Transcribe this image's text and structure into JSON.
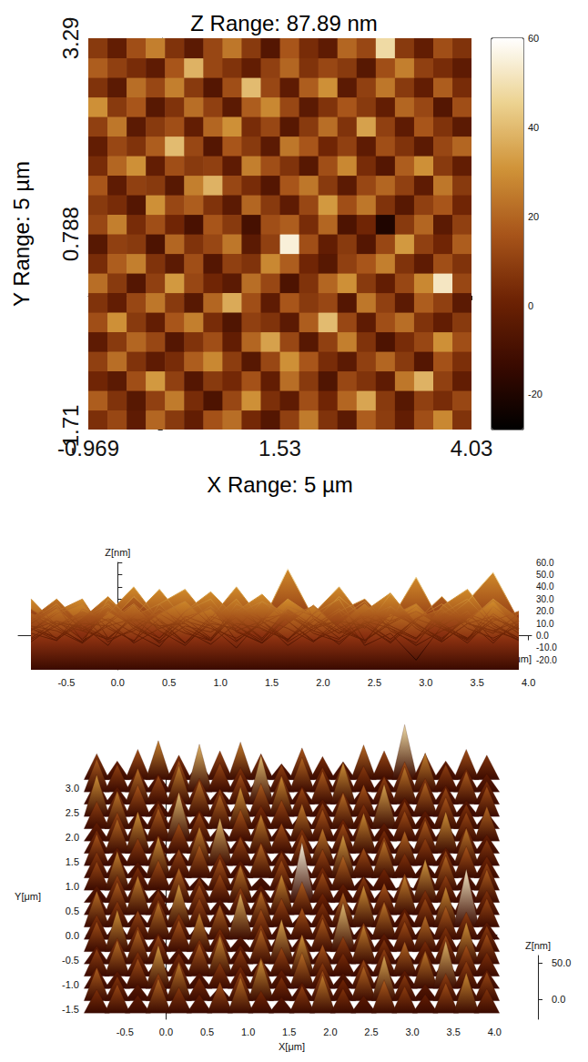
{
  "chart_data": [
    {
      "type": "heatmap",
      "title": "Z Range: 87.89 nm",
      "x_label": "X Range: 5 µm",
      "y_label": "Y Range: 5 µm",
      "xlim": [
        -0.969,
        4.03
      ],
      "ylim": [
        -1.71,
        3.29
      ],
      "xticks": [
        -0.969,
        1.53,
        4.03
      ],
      "yticks": [
        -1.71,
        0.788,
        3.29
      ],
      "colorbar_range": [
        -27.89,
        60
      ],
      "colorbar_ticks": [
        -20,
        0,
        20,
        40,
        60
      ],
      "x": [
        -0.844,
        -0.594,
        -0.344,
        -0.094,
        0.156,
        0.406,
        0.656,
        0.906,
        1.156,
        1.406,
        1.656,
        1.906,
        2.156,
        2.406,
        2.656,
        2.906,
        3.156,
        3.406,
        3.656,
        3.906
      ],
      "y": [
        -1.585,
        -1.335,
        -1.085,
        -0.835,
        -0.585,
        -0.335,
        -0.085,
        0.165,
        0.415,
        0.665,
        0.915,
        1.165,
        1.415,
        1.665,
        1.915,
        2.165,
        2.415,
        2.665,
        2.915,
        3.165
      ],
      "z": [
        [
          5,
          12,
          -3,
          20,
          8,
          -2,
          15,
          22,
          3,
          -6,
          10,
          25,
          6,
          -4,
          18,
          9,
          -2,
          14,
          28,
          6
        ],
        [
          18,
          6,
          -5,
          10,
          25,
          4,
          -8,
          12,
          30,
          5,
          -3,
          14,
          2,
          20,
          35,
          8,
          -5,
          10,
          4,
          12
        ],
        [
          2,
          -4,
          14,
          32,
          10,
          -6,
          8,
          3,
          15,
          -2,
          22,
          8,
          -7,
          12,
          6,
          -3,
          24,
          38,
          10,
          -2
        ],
        [
          10,
          22,
          6,
          -3,
          4,
          18,
          28,
          9,
          -5,
          12,
          30,
          16,
          4,
          -4,
          10,
          20,
          8,
          -6,
          15,
          5
        ],
        [
          -3,
          8,
          20,
          12,
          -6,
          6,
          14,
          -2,
          20,
          34,
          12,
          -5,
          10,
          26,
          6,
          -8,
          4,
          12,
          30,
          14
        ],
        [
          14,
          30,
          8,
          -2,
          16,
          26,
          4,
          -7,
          10,
          6,
          -4,
          18,
          40,
          12,
          -3,
          14,
          22,
          6,
          -2,
          8
        ],
        [
          6,
          -2,
          12,
          24,
          8,
          -5,
          20,
          36,
          14,
          -3,
          16,
          8,
          12,
          -6,
          24,
          10,
          -4,
          18,
          10,
          -4
        ],
        [
          22,
          8,
          -6,
          10,
          32,
          12,
          2,
          -4,
          22,
          12,
          -8,
          6,
          20,
          30,
          8,
          -2,
          12,
          28,
          52,
          12
        ],
        [
          4,
          18,
          26,
          6,
          -4,
          14,
          -6,
          10,
          6,
          28,
          18,
          2,
          -5,
          10,
          16,
          26,
          6,
          -3,
          14,
          6
        ],
        [
          -5,
          10,
          8,
          -8,
          20,
          6,
          12,
          24,
          -4,
          10,
          55,
          14,
          -2,
          8,
          -6,
          12,
          32,
          10,
          2,
          18
        ],
        [
          12,
          26,
          4,
          14,
          2,
          -9,
          16,
          8,
          -10,
          14,
          18,
          4,
          20,
          -8,
          2,
          -20,
          8,
          20,
          -4,
          10
        ],
        [
          8,
          4,
          -6,
          30,
          12,
          18,
          6,
          -4,
          20,
          8,
          -3,
          12,
          32,
          14,
          24,
          6,
          -5,
          10,
          16,
          2
        ],
        [
          16,
          -3,
          10,
          8,
          -5,
          26,
          38,
          12,
          4,
          -6,
          16,
          24,
          8,
          -4,
          12,
          20,
          10,
          -3,
          24,
          8
        ],
        [
          4,
          20,
          30,
          -2,
          14,
          8,
          10,
          -3,
          26,
          14,
          6,
          -5,
          14,
          28,
          4,
          -6,
          18,
          30,
          8,
          -2
        ],
        [
          -2,
          12,
          6,
          18,
          40,
          12,
          -6,
          16,
          8,
          -4,
          24,
          16,
          2,
          10,
          -3,
          14,
          6,
          -4,
          12,
          20
        ],
        [
          10,
          24,
          -4,
          8,
          14,
          -2,
          20,
          30,
          4,
          12,
          -5,
          8,
          22,
          6,
          34,
          10,
          -3,
          16,
          6,
          -4
        ],
        [
          30,
          8,
          16,
          -5,
          6,
          22,
          10,
          -4,
          18,
          28,
          12,
          -4,
          6,
          16,
          8,
          -2,
          20,
          12,
          -6,
          14
        ],
        [
          6,
          -4,
          22,
          12,
          26,
          8,
          -6,
          14,
          40,
          12,
          -3,
          18,
          30,
          -4,
          10,
          24,
          8,
          -2,
          18,
          4
        ],
        [
          18,
          10,
          4,
          -3,
          16,
          38,
          12,
          6,
          -2,
          10,
          20,
          6,
          12,
          8,
          -5,
          14,
          26,
          10,
          4,
          -3
        ],
        [
          8,
          -2,
          14,
          26,
          6,
          -4,
          12,
          24,
          8,
          -6,
          16,
          4,
          -3,
          20,
          12,
          48,
          8,
          -2,
          14,
          6
        ]
      ]
    },
    {
      "type": "side_view",
      "x_label": "X[μm]",
      "z_label": "Z[nm]",
      "xlim": [
        -0.969,
        4.03
      ],
      "xticks": [
        {
          "value": -0.5,
          "label": "-0.5"
        },
        {
          "value": 0,
          "label": "0.0"
        },
        {
          "value": 0.5,
          "label": "0.5"
        },
        {
          "value": 1,
          "label": "1.0"
        },
        {
          "value": 1.5,
          "label": "1.5"
        },
        {
          "value": 2,
          "label": "2.0"
        },
        {
          "value": 2.5,
          "label": "2.5"
        },
        {
          "value": 3,
          "label": "3.0"
        },
        {
          "value": 3.5,
          "label": "3.5"
        },
        {
          "value": 4,
          "label": "4.0"
        }
      ],
      "zlim": [
        -27.89,
        60
      ],
      "zticks": [
        {
          "value": -20,
          "label": "-20.0"
        },
        {
          "value": -10,
          "label": "-10.0"
        },
        {
          "value": 0,
          "label": "0.0"
        },
        {
          "value": 10,
          "label": "10.0"
        },
        {
          "value": 20,
          "label": "20.0"
        },
        {
          "value": 30,
          "label": "30.0"
        },
        {
          "value": 40,
          "label": "40.0"
        },
        {
          "value": 50,
          "label": "50.0"
        },
        {
          "value": 60,
          "label": "60.0"
        }
      ]
    },
    {
      "type": "surface",
      "x_label": "X[μm]",
      "y_label": "Y[μm]",
      "z_label": "Z[nm]",
      "xlim": [
        -0.969,
        4.03
      ],
      "ylim": [
        -1.71,
        3.29
      ],
      "zlim": [
        -27.89,
        60
      ],
      "xticks": [
        {
          "value": -0.5,
          "label": "-0.5"
        },
        {
          "value": 0,
          "label": "0.0"
        },
        {
          "value": 0.5,
          "label": "0.5"
        },
        {
          "value": 1,
          "label": "1.0"
        },
        {
          "value": 1.5,
          "label": "1.5"
        },
        {
          "value": 2,
          "label": "2.0"
        },
        {
          "value": 2.5,
          "label": "2.5"
        },
        {
          "value": 3,
          "label": "3.0"
        },
        {
          "value": 3.5,
          "label": "3.5"
        },
        {
          "value": 4,
          "label": "4.0"
        }
      ],
      "yticks": [
        {
          "value": -1.5,
          "label": "-1.5"
        },
        {
          "value": -1,
          "label": "-1.0"
        },
        {
          "value": -0.5,
          "label": "-0.5"
        },
        {
          "value": 0,
          "label": "0.0"
        },
        {
          "value": 0.5,
          "label": "0.5"
        },
        {
          "value": 1,
          "label": "1.0"
        },
        {
          "value": 1.5,
          "label": "1.5"
        },
        {
          "value": 2,
          "label": "2.0"
        },
        {
          "value": 2.5,
          "label": "2.5"
        },
        {
          "value": 3,
          "label": "3.0"
        }
      ],
      "zticks": [
        {
          "value": 0,
          "label": "0.0"
        },
        {
          "value": 50,
          "label": "50.0"
        }
      ]
    }
  ]
}
